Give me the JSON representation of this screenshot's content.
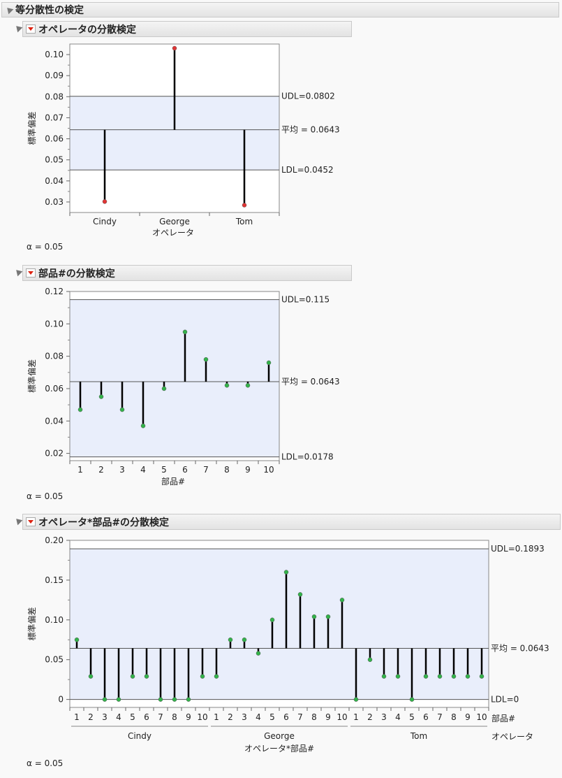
{
  "report_title": "等分散性の検定",
  "sections": [
    {
      "title": "オペレータの分散検定",
      "alpha_text": "α = 0.05"
    },
    {
      "title": "部品#の分散検定",
      "alpha_text": "α = 0.05"
    },
    {
      "title": "オペレータ*部品#の分散検定",
      "alpha_text": "α = 0.05"
    }
  ],
  "colors": {
    "band": "#e9eefb",
    "red_point": "#e03535",
    "green_point": "#33b24a",
    "stem": "#000000",
    "limit_line": "#555555"
  },
  "chart_data": [
    {
      "type": "scatter",
      "title": "オペレータの分散検定",
      "xlabel": "オペレータ",
      "ylabel": "標準偏差",
      "categories": [
        "Cindy",
        "George",
        "Tom"
      ],
      "values": [
        0.0302,
        0.103,
        0.0285
      ],
      "ylim": [
        0.025,
        0.105
      ],
      "yticks": [
        0.03,
        0.04,
        0.05,
        0.06,
        0.07,
        0.08,
        0.09,
        0.1
      ],
      "ytick_labels": [
        "0.03",
        "0.04",
        "0.05",
        "0.06",
        "0.07",
        "0.08",
        "0.09",
        "0.10"
      ],
      "mean": 0.0643,
      "udl": 0.0802,
      "ldl": 0.0452,
      "udl_label": "UDL=0.0802",
      "mean_label": "平均 = 0.0643",
      "ldl_label": "LDL=0.0452",
      "band_covers": "ldl-udl",
      "point_color": "red"
    },
    {
      "type": "scatter",
      "title": "部品#の分散検定",
      "xlabel": "部品#",
      "ylabel": "標準偏差",
      "categories": [
        "1",
        "2",
        "3",
        "4",
        "5",
        "6",
        "7",
        "8",
        "9",
        "10"
      ],
      "values": [
        0.047,
        0.055,
        0.047,
        0.037,
        0.06,
        0.095,
        0.078,
        0.062,
        0.062,
        0.076
      ],
      "ylim": [
        0.0155,
        0.12
      ],
      "yticks": [
        0.02,
        0.04,
        0.06,
        0.08,
        0.1,
        0.12
      ],
      "ytick_labels": [
        "0.02",
        "0.04",
        "0.06",
        "0.08",
        "0.10",
        "0.12"
      ],
      "mean": 0.0643,
      "udl": 0.115,
      "ldl": 0.0178,
      "udl_label": "UDL=0.115",
      "mean_label": "平均 = 0.0643",
      "ldl_label": "LDL=0.0178",
      "band_covers": "ldl-udl",
      "point_color": "green"
    },
    {
      "type": "scatter",
      "title": "オペレータ*部品#の分散検定",
      "xlabel": "オペレータ*部品#",
      "ylabel": "標準偏差",
      "categories": [
        "1",
        "2",
        "3",
        "4",
        "5",
        "6",
        "7",
        "8",
        "9",
        "10",
        "1",
        "2",
        "3",
        "4",
        "5",
        "6",
        "7",
        "8",
        "9",
        "10",
        "1",
        "2",
        "3",
        "4",
        "5",
        "6",
        "7",
        "8",
        "9",
        "10"
      ],
      "groups": [
        "Cindy",
        "George",
        "Tom"
      ],
      "group_size": 10,
      "inner_label": "部品#",
      "outer_label": "オペレータ",
      "values": [
        0.075,
        0.029,
        0,
        0,
        0.029,
        0.029,
        0,
        0,
        0,
        0.029,
        0.029,
        0.075,
        0.075,
        0.058,
        0.1,
        0.16,
        0.132,
        0.104,
        0.104,
        0.125,
        0,
        0.05,
        0.029,
        0.029,
        0,
        0.029,
        0.029,
        0.029,
        0.029,
        0.029
      ],
      "ylim": [
        -0.01,
        0.2
      ],
      "yticks": [
        0,
        0.05,
        0.1,
        0.15,
        0.2
      ],
      "ytick_labels": [
        "0",
        "0.05",
        "0.10",
        "0.15",
        "0.20"
      ],
      "mean": 0.0643,
      "udl": 0.1893,
      "ldl": 0,
      "udl_label": "UDL=0.1893",
      "mean_label": "平均 = 0.0643",
      "ldl_label": "LDL=0",
      "band_covers": "ldl-udl",
      "point_color": "green"
    }
  ]
}
